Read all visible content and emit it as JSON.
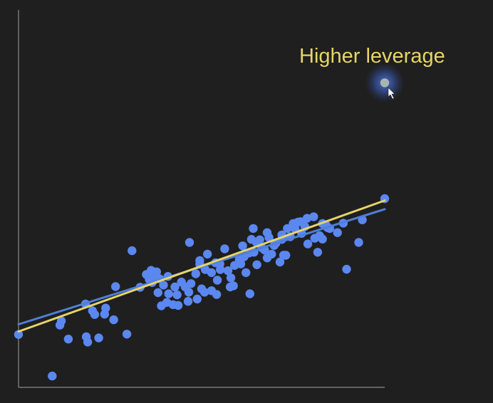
{
  "chart_data": {
    "type": "scatter",
    "title": "",
    "xlabel": "",
    "ylabel": "",
    "xlim": [
      0,
      100
    ],
    "ylim": [
      0,
      100
    ],
    "grid": false,
    "points": [
      [
        0,
        14.0
      ],
      [
        9.2,
        3.0
      ],
      [
        11.7,
        17.6
      ],
      [
        13.6,
        12.8
      ],
      [
        18.5,
        13.4
      ],
      [
        18.9,
        12.0
      ],
      [
        21.9,
        13.1
      ],
      [
        18.3,
        22.1
      ],
      [
        20.2,
        20.3
      ],
      [
        23.5,
        19.4
      ],
      [
        26.0,
        17.9
      ],
      [
        26.5,
        26.7
      ],
      [
        29.6,
        14.1
      ],
      [
        31.0,
        36.2
      ],
      [
        34.9,
        29.9
      ],
      [
        35.7,
        28.6
      ],
      [
        36.2,
        31.0
      ],
      [
        37.0,
        29.4
      ],
      [
        37.7,
        30.6
      ],
      [
        38.1,
        25.1
      ],
      [
        38.5,
        28.8
      ],
      [
        39.0,
        21.6
      ],
      [
        39.6,
        27.1
      ],
      [
        40.5,
        22.5
      ],
      [
        40.8,
        29.4
      ],
      [
        41.0,
        24.8
      ],
      [
        42.2,
        21.9
      ],
      [
        42.7,
        26.6
      ],
      [
        43.6,
        21.7
      ],
      [
        43.3,
        24.5
      ],
      [
        46.7,
        38.4
      ],
      [
        45.5,
        26.6
      ],
      [
        46.3,
        22.8
      ],
      [
        46.5,
        25.2
      ],
      [
        47.1,
        27.5
      ],
      [
        48.8,
        23.4
      ],
      [
        48.4,
        30.1
      ],
      [
        49.5,
        32.6
      ],
      [
        50.0,
        26.1
      ],
      [
        50.8,
        25.2
      ],
      [
        49.5,
        33.6
      ],
      [
        51.0,
        31.2
      ],
      [
        51.6,
        35.3
      ],
      [
        52.7,
        25.6
      ],
      [
        52.7,
        30.4
      ],
      [
        54.1,
        24.6
      ],
      [
        54.3,
        28.4
      ],
      [
        55.1,
        31.2
      ],
      [
        56.3,
        36.7
      ],
      [
        55.0,
        32.7
      ],
      [
        58.7,
        26.9
      ],
      [
        57.8,
        26.6
      ],
      [
        58.0,
        29.0
      ],
      [
        59.0,
        32.3
      ],
      [
        60.3,
        33.9
      ],
      [
        60.7,
        32.7
      ],
      [
        61.2,
        37.5
      ],
      [
        62.1,
        30.4
      ],
      [
        63.0,
        35.6
      ],
      [
        63.6,
        39.2
      ],
      [
        64.1,
        42.1
      ],
      [
        63.2,
        24.8
      ],
      [
        64.3,
        35.8
      ],
      [
        65.0,
        38.4
      ],
      [
        65.9,
        39.1
      ],
      [
        65.1,
        32.5
      ],
      [
        67.2,
        36.4
      ],
      [
        67.9,
        34.3
      ],
      [
        67.9,
        41.0
      ],
      [
        68.4,
        39.7
      ],
      [
        69.1,
        35.3
      ],
      [
        69.8,
        37.6
      ],
      [
        70.3,
        38.2
      ],
      [
        71.4,
        33.2
      ],
      [
        71.9,
        40.4
      ],
      [
        72.4,
        35.0
      ],
      [
        71.9,
        39.2
      ],
      [
        73.0,
        35.0
      ],
      [
        73.4,
        42.1
      ],
      [
        75.0,
        43.4
      ],
      [
        76.3,
        43.8
      ],
      [
        75.5,
        42.0
      ],
      [
        77.0,
        43.9
      ],
      [
        77.3,
        40.8
      ],
      [
        78.2,
        42.6
      ],
      [
        78.8,
        44.8
      ],
      [
        79.0,
        38.0
      ],
      [
        80.6,
        45.2
      ],
      [
        80.9,
        39.5
      ],
      [
        81.7,
        35.8
      ],
      [
        83.0,
        39.3
      ],
      [
        83.0,
        43.4
      ],
      [
        84.0,
        43.0
      ],
      [
        84.4,
        42.3
      ],
      [
        85.0,
        42.1
      ],
      [
        87.1,
        41.0
      ],
      [
        88.7,
        43.5
      ],
      [
        89.6,
        31.3
      ],
      [
        92.9,
        38.4
      ],
      [
        93.9,
        44.4
      ],
      [
        100,
        50.0
      ],
      [
        11.3,
        16.5
      ],
      [
        20.8,
        19.3
      ],
      [
        23.8,
        21.0
      ],
      [
        33.2,
        26.5
      ],
      [
        36.5,
        27.8
      ],
      [
        44.5,
        27.9
      ],
      [
        53.8,
        33.0
      ],
      [
        57.2,
        30.9
      ],
      [
        61.6,
        34.6
      ],
      [
        66.4,
        37.0
      ],
      [
        74.2,
        39.9
      ],
      [
        82.2,
        40.2
      ]
    ],
    "series_lines": [
      {
        "color": "#4f7fd9",
        "from": [
          0,
          16.7
        ],
        "to": [
          100,
          47.2
        ]
      },
      {
        "color": "#e6d46a",
        "from": [
          0,
          14.8
        ],
        "to": [
          100,
          49.5
        ]
      }
    ],
    "highlight_point": {
      "x": 100,
      "y": 80.7,
      "color": "#a9b6b0"
    },
    "annotation": "Higher leverage",
    "colors": {
      "point": "#5b87f0",
      "fit_all": "#e6d46a",
      "fit_excluding": "#4f7fd9",
      "axis": "#8a8a8a",
      "annotation": "#e6d46a",
      "glow": "#4a6fd6"
    }
  }
}
